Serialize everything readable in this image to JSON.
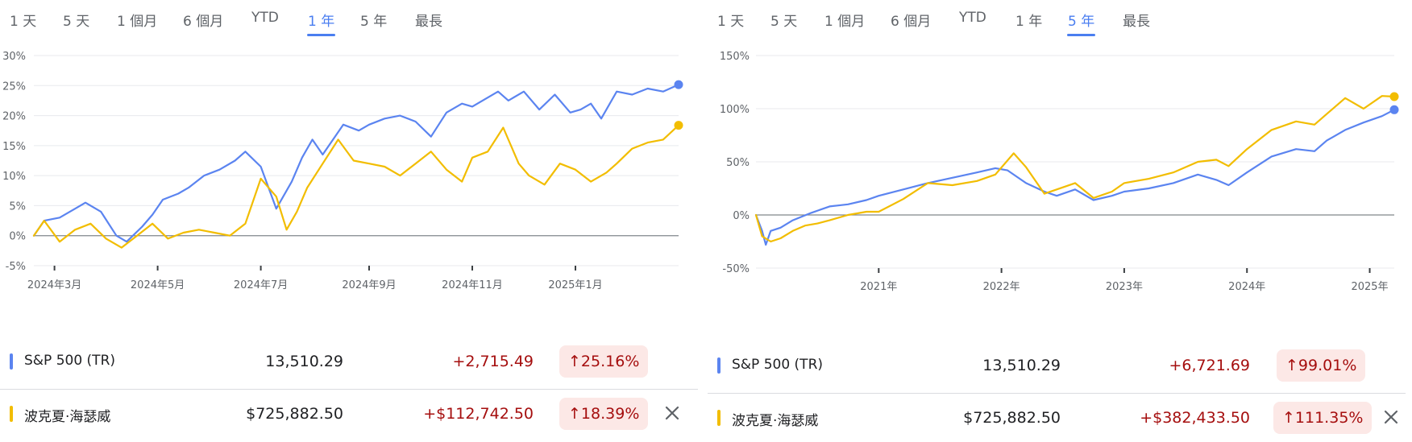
{
  "colors": {
    "sp500": "#5b84f0",
    "bh": "#f2bd00",
    "up_bg": "#fce8e6",
    "up_text": "#a50e0e",
    "accent": "#4a7ef0"
  },
  "panels": [
    {
      "tabs": [
        "1 天",
        "5 天",
        "1 個月",
        "6 個月",
        "YTD",
        "1 年",
        "5 年",
        "最長"
      ],
      "active_tab": "1 年",
      "rows": [
        {
          "name": "S&P 500 (TR)",
          "price": "13,510.29",
          "change": "+2,715.49",
          "pct": "25.16%",
          "arrow_icon": "arrow-up-icon",
          "closable": false
        },
        {
          "name": "波克夏·海瑟威",
          "price": "$725,882.50",
          "change": "+$112,742.50",
          "pct": "18.39%",
          "arrow_icon": "arrow-up-icon",
          "closable": true
        }
      ]
    },
    {
      "tabs": [
        "1 天",
        "5 天",
        "1 個月",
        "6 個月",
        "YTD",
        "1 年",
        "5 年",
        "最長"
      ],
      "active_tab": "5 年",
      "rows": [
        {
          "name": "S&P 500 (TR)",
          "price": "13,510.29",
          "change": "+6,721.69",
          "pct": "99.01%",
          "arrow_icon": "arrow-up-icon",
          "closable": false
        },
        {
          "name": "波克夏·海瑟威",
          "price": "$725,882.50",
          "change": "+$382,433.50",
          "pct": "111.35%",
          "arrow_icon": "arrow-up-icon",
          "closable": true
        }
      ]
    }
  ],
  "chart_data": [
    {
      "type": "line",
      "ylim": [
        -5,
        30
      ],
      "yticks": [
        -5,
        0,
        5,
        10,
        15,
        20,
        25,
        30
      ],
      "ytick_labels": [
        "-5%",
        "0%",
        "5%",
        "10%",
        "15%",
        "20%",
        "25%",
        "30%"
      ],
      "xlim": [
        0,
        12.5
      ],
      "xticks": [
        0.4,
        2.4,
        4.4,
        6.5,
        8.5,
        10.5
      ],
      "xtick_labels": [
        "2024年3月",
        "2024年5月",
        "2024年7月",
        "2024年9月",
        "2024年11月",
        "2025年1月"
      ],
      "grid": true,
      "series": [
        {
          "name": "S&P 500 (TR)",
          "color": "#5b84f0",
          "x": [
            0,
            0.2,
            0.5,
            0.8,
            1.0,
            1.3,
            1.6,
            1.8,
            2.1,
            2.3,
            2.5,
            2.8,
            3.0,
            3.3,
            3.6,
            3.9,
            4.1,
            4.4,
            4.7,
            5.0,
            5.2,
            5.4,
            5.6,
            5.8,
            6.0,
            6.3,
            6.5,
            6.8,
            7.1,
            7.4,
            7.7,
            8.0,
            8.3,
            8.5,
            8.8,
            9.0,
            9.2,
            9.5,
            9.8,
            10.1,
            10.4,
            10.6,
            10.8,
            11.0,
            11.3,
            11.6,
            11.9,
            12.2,
            12.5
          ],
          "values": [
            0,
            2.5,
            3,
            4.5,
            5.5,
            4,
            0,
            -1,
            1.5,
            3.5,
            6,
            7,
            8,
            10,
            11,
            12.5,
            14,
            11.5,
            4.5,
            9,
            13,
            16,
            13.5,
            16,
            18.5,
            17.5,
            18.5,
            19.5,
            20,
            19,
            16.5,
            20.5,
            22,
            21.5,
            23,
            24,
            22.5,
            24,
            21,
            23.5,
            20.5,
            21,
            22,
            19.5,
            24,
            23.5,
            24.5,
            24,
            25.16
          ]
        },
        {
          "name": "波克夏·海瑟威",
          "color": "#f2bd00",
          "x": [
            0,
            0.2,
            0.5,
            0.8,
            1.1,
            1.4,
            1.7,
            2.0,
            2.3,
            2.6,
            2.9,
            3.2,
            3.5,
            3.8,
            4.1,
            4.4,
            4.7,
            4.9,
            5.1,
            5.3,
            5.6,
            5.9,
            6.2,
            6.5,
            6.8,
            7.1,
            7.4,
            7.7,
            8.0,
            8.3,
            8.5,
            8.8,
            9.1,
            9.4,
            9.6,
            9.9,
            10.2,
            10.5,
            10.8,
            11.1,
            11.3,
            11.6,
            11.9,
            12.2,
            12.5
          ],
          "values": [
            0,
            2.5,
            -1,
            1,
            2,
            -0.5,
            -2,
            0,
            2,
            -0.5,
            0.5,
            1,
            0.5,
            0,
            2,
            9.5,
            6.5,
            1,
            4,
            8,
            12,
            16,
            12.5,
            12,
            11.5,
            10,
            12,
            14,
            11,
            9,
            13,
            14,
            18,
            12,
            10,
            8.5,
            12,
            11,
            9,
            10.5,
            12,
            14.5,
            15.5,
            16,
            18.39
          ]
        }
      ]
    },
    {
      "type": "line",
      "ylim": [
        -50,
        150
      ],
      "yticks": [
        -50,
        0,
        50,
        100,
        150
      ],
      "ytick_labels": [
        "-50%",
        "0%",
        "50%",
        "100%",
        "150%"
      ],
      "xlim": [
        2020.0,
        2025.2
      ],
      "xticks": [
        2021.0,
        2022.0,
        2023.0,
        2024.0,
        2025.0
      ],
      "xtick_labels": [
        "2021年",
        "2022年",
        "2023年",
        "2024年",
        "2025年"
      ],
      "grid": true,
      "series": [
        {
          "name": "S&P 500 (TR)",
          "color": "#5b84f0",
          "x": [
            2020.0,
            2020.05,
            2020.08,
            2020.12,
            2020.2,
            2020.3,
            2020.45,
            2020.6,
            2020.75,
            2020.9,
            2021.0,
            2021.2,
            2021.4,
            2021.6,
            2021.8,
            2021.95,
            2022.05,
            2022.2,
            2022.35,
            2022.45,
            2022.6,
            2022.75,
            2022.9,
            2023.0,
            2023.2,
            2023.4,
            2023.6,
            2023.75,
            2023.85,
            2024.0,
            2024.2,
            2024.4,
            2024.55,
            2024.65,
            2024.8,
            2024.95,
            2025.1,
            2025.2
          ],
          "values": [
            0,
            -15,
            -28,
            -15,
            -12,
            -5,
            2,
            8,
            10,
            14,
            18,
            24,
            30,
            35,
            40,
            44,
            42,
            30,
            22,
            18,
            24,
            14,
            18,
            22,
            25,
            30,
            38,
            33,
            28,
            40,
            55,
            62,
            60,
            70,
            80,
            87,
            93,
            99.01
          ]
        },
        {
          "name": "波克夏·海瑟威",
          "color": "#f2bd00",
          "x": [
            2020.0,
            2020.05,
            2020.12,
            2020.2,
            2020.3,
            2020.4,
            2020.5,
            2020.6,
            2020.75,
            2020.9,
            2021.0,
            2021.2,
            2021.4,
            2021.6,
            2021.8,
            2021.95,
            2022.1,
            2022.2,
            2022.35,
            2022.45,
            2022.6,
            2022.75,
            2022.9,
            2023.0,
            2023.2,
            2023.4,
            2023.6,
            2023.75,
            2023.85,
            2024.0,
            2024.2,
            2024.4,
            2024.55,
            2024.65,
            2024.8,
            2024.95,
            2025.1,
            2025.2
          ],
          "values": [
            0,
            -20,
            -25,
            -22,
            -15,
            -10,
            -8,
            -5,
            0,
            3,
            3,
            15,
            30,
            28,
            32,
            38,
            58,
            45,
            20,
            24,
            30,
            16,
            22,
            30,
            34,
            40,
            50,
            52,
            46,
            62,
            80,
            88,
            85,
            95,
            110,
            100,
            112,
            111.35
          ]
        }
      ]
    }
  ]
}
